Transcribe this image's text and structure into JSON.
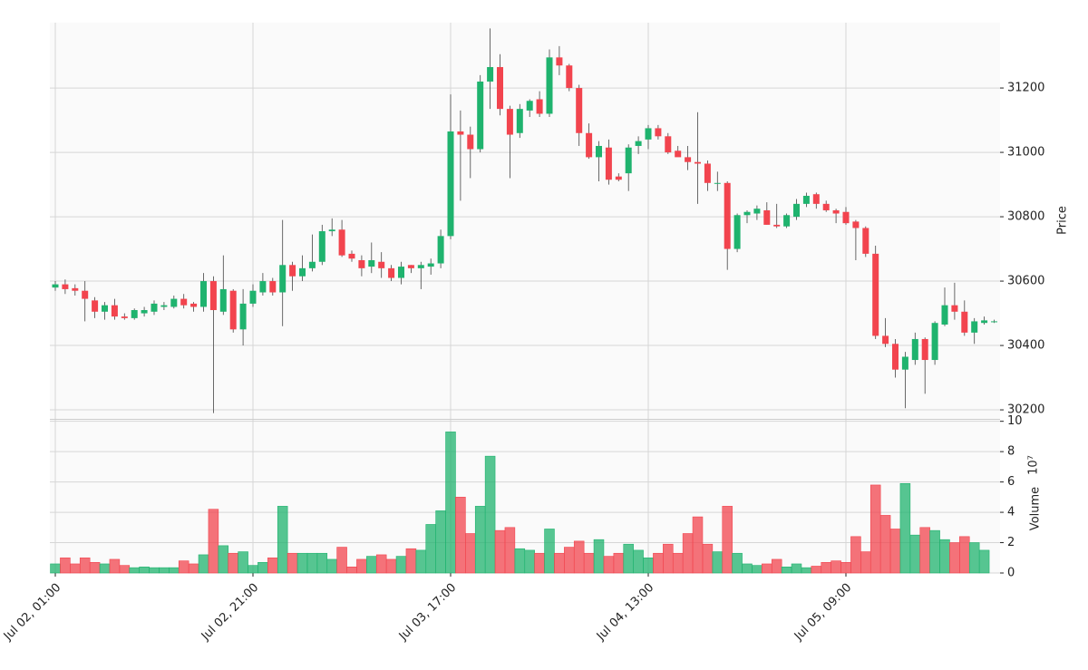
{
  "chart_data": {
    "type": "candlestick",
    "categories": [
      "Jul 02, 01:00",
      null,
      null,
      null,
      null,
      null,
      null,
      null,
      null,
      null,
      null,
      null,
      null,
      null,
      null,
      null,
      null,
      null,
      null,
      null,
      "Jul 02, 21:00",
      null,
      null,
      null,
      null,
      null,
      null,
      null,
      null,
      null,
      null,
      null,
      null,
      null,
      null,
      null,
      null,
      null,
      null,
      null,
      "Jul 03, 17:00",
      null,
      null,
      null,
      null,
      null,
      null,
      null,
      null,
      null,
      null,
      null,
      null,
      null,
      null,
      null,
      null,
      null,
      null,
      null,
      "Jul 04, 13:00",
      null,
      null,
      null,
      null,
      null,
      null,
      null,
      null,
      null,
      null,
      null,
      null,
      null,
      null,
      null,
      null,
      null,
      null,
      null,
      "Jul 05, 09:00",
      null,
      null,
      null,
      null,
      null,
      null,
      null,
      null,
      null,
      null,
      null,
      null,
      null,
      null,
      null
    ],
    "open": [
      30580,
      30590,
      30578,
      30570,
      30540,
      30505,
      30525,
      30490,
      30485,
      30500,
      30505,
      30520,
      30520,
      30545,
      30530,
      30520,
      30600,
      30505,
      30570,
      30450,
      30530,
      30565,
      30600,
      30565,
      30650,
      30615,
      30640,
      30660,
      30755,
      30760,
      30685,
      30665,
      30645,
      30660,
      30640,
      30610,
      30650,
      30640,
      30645,
      30655,
      30740,
      31065,
      31055,
      31010,
      31220,
      31265,
      31135,
      31060,
      31130,
      31165,
      31120,
      31295,
      31270,
      31200,
      31060,
      30985,
      31015,
      30925,
      30935,
      31020,
      31040,
      31075,
      31050,
      31005,
      30985,
      30970,
      30965,
      30905,
      30905,
      30700,
      30805,
      30810,
      30820,
      30775,
      30770,
      30800,
      30840,
      30870,
      30840,
      30820,
      30815,
      30785,
      30765,
      30685,
      30430,
      30405,
      30325,
      30355,
      30420,
      30355,
      30465,
      30525,
      30505,
      30440,
      30470,
      30475
    ],
    "high": [
      30600,
      30605,
      30590,
      30600,
      30550,
      30535,
      30545,
      30500,
      30515,
      30520,
      30540,
      30535,
      30555,
      30560,
      30535,
      30625,
      30615,
      30680,
      30575,
      30575,
      30590,
      30625,
      30610,
      30790,
      30660,
      30680,
      30745,
      30775,
      30795,
      30790,
      30695,
      30680,
      30720,
      30690,
      30650,
      30660,
      30650,
      30660,
      30670,
      30760,
      31180,
      31130,
      31080,
      31240,
      31385,
      31305,
      31145,
      31150,
      31165,
      31190,
      31320,
      31330,
      31275,
      31210,
      31090,
      31035,
      31040,
      30935,
      31025,
      31050,
      31085,
      31085,
      31060,
      31020,
      31020,
      31125,
      30975,
      30940,
      30910,
      30810,
      30820,
      30835,
      30845,
      30840,
      30810,
      30855,
      30875,
      30875,
      30850,
      30825,
      30830,
      30790,
      30770,
      30710,
      30485,
      30420,
      30380,
      30440,
      30425,
      30475,
      30580,
      30595,
      30540,
      30485,
      30490,
      30480
    ],
    "low": [
      30570,
      30560,
      30555,
      30475,
      30485,
      30480,
      30480,
      30480,
      30480,
      30490,
      30495,
      30510,
      30515,
      30515,
      30505,
      30505,
      30190,
      30495,
      30440,
      30400,
      30520,
      30555,
      30555,
      30460,
      30570,
      30600,
      30630,
      30650,
      30740,
      30675,
      30660,
      30615,
      30625,
      30610,
      30600,
      30590,
      30625,
      30575,
      30620,
      30640,
      30730,
      30850,
      30920,
      31000,
      31135,
      31115,
      30920,
      31045,
      31110,
      31110,
      31110,
      31240,
      31190,
      31020,
      30980,
      30910,
      30900,
      30910,
      30880,
      30995,
      31010,
      31040,
      30995,
      30990,
      30945,
      30840,
      30880,
      30880,
      30635,
      30690,
      30780,
      30790,
      30775,
      30765,
      30765,
      30790,
      30830,
      30825,
      30815,
      30780,
      30775,
      30665,
      30675,
      30420,
      30395,
      30300,
      30205,
      30340,
      30250,
      30340,
      30460,
      30480,
      30430,
      30405,
      30465,
      30470
    ],
    "close": [
      30590,
      30575,
      30570,
      30545,
      30505,
      30525,
      30490,
      30485,
      30510,
      30510,
      30530,
      30525,
      30545,
      30525,
      30520,
      30600,
      30510,
      30575,
      30450,
      30530,
      30570,
      30600,
      30565,
      30650,
      30615,
      30640,
      30660,
      30755,
      30760,
      30680,
      30670,
      30640,
      30665,
      30640,
      30610,
      30645,
      30640,
      30650,
      30655,
      30740,
      31065,
      31055,
      31010,
      31220,
      31265,
      31135,
      31055,
      31135,
      31160,
      31120,
      31295,
      31270,
      31200,
      31060,
      30985,
      31020,
      30915,
      30915,
      31015,
      31035,
      31075,
      31050,
      31000,
      30985,
      30970,
      30965,
      30905,
      30905,
      30700,
      30805,
      30815,
      30825,
      30775,
      30770,
      30805,
      30840,
      30865,
      30840,
      30820,
      30810,
      30780,
      30765,
      30685,
      30430,
      30405,
      30325,
      30365,
      30420,
      30355,
      30470,
      30525,
      30505,
      30440,
      30475,
      30478,
      30475
    ],
    "volume": [
      0.6,
      1.0,
      0.6,
      1.0,
      0.7,
      0.6,
      0.9,
      0.5,
      0.35,
      0.4,
      0.35,
      0.35,
      0.35,
      0.8,
      0.6,
      1.2,
      4.2,
      1.8,
      1.3,
      1.4,
      0.5,
      0.7,
      1.0,
      4.4,
      1.3,
      1.3,
      1.3,
      1.3,
      0.9,
      1.7,
      0.4,
      0.9,
      1.1,
      1.2,
      0.9,
      1.1,
      1.6,
      1.5,
      3.2,
      4.1,
      9.3,
      5.0,
      2.6,
      4.4,
      7.7,
      2.8,
      3.0,
      1.6,
      1.5,
      1.3,
      2.9,
      1.3,
      1.7,
      2.1,
      1.3,
      2.2,
      1.1,
      1.3,
      1.9,
      1.5,
      1.0,
      1.3,
      1.9,
      1.3,
      2.6,
      3.7,
      1.9,
      1.4,
      4.4,
      1.3,
      0.6,
      0.5,
      0.6,
      0.9,
      0.4,
      0.6,
      0.35,
      0.45,
      0.7,
      0.8,
      0.7,
      2.4,
      1.4,
      5.8,
      3.8,
      2.9,
      5.9,
      2.5,
      3.0,
      2.8,
      2.2,
      2.0,
      2.4,
      2.0,
      1.5,
      0
    ],
    "ylim": [
      30172,
      31403
    ],
    "yticks": [
      30200,
      30400,
      30600,
      30800,
      31000,
      31200
    ],
    "y_label": "Price",
    "volume_ylim": [
      0,
      10.1
    ],
    "volume_yticks": [
      0,
      2,
      4,
      6,
      8,
      10
    ],
    "volume_label": "Volume",
    "volume_scale_label": "10⁷",
    "up_color": "#1fb36e",
    "down_color": "#f2444e",
    "grid": true
  }
}
